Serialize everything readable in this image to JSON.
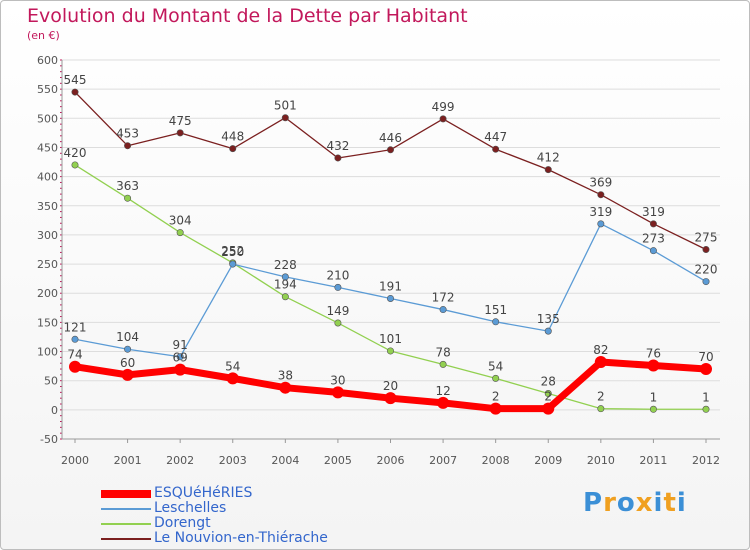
{
  "title": "Evolution du Montant de la Dette par Habitant",
  "subtitle": "(en €)",
  "brand": "Proxiti",
  "colors": {
    "title": "#c2185b",
    "axis_text": "#555555",
    "legend_text": "#3366cc",
    "grid": "#dddddd"
  },
  "chart_data": {
    "type": "line",
    "title": "Evolution du Montant de la Dette par Habitant",
    "subtitle": "(en €)",
    "x": [
      "2000",
      "2001",
      "2002",
      "2003",
      "2004",
      "2005",
      "2006",
      "2007",
      "2008",
      "2009",
      "2010",
      "2011",
      "2012"
    ],
    "ylim": [
      -50,
      600
    ],
    "yticks": [
      -50,
      0,
      50,
      100,
      150,
      200,
      250,
      300,
      350,
      400,
      450,
      500,
      550,
      600
    ],
    "grid": true,
    "legend_position": "bottom",
    "series": [
      {
        "name": "ESQUéHéRIES",
        "color": "#ff0000",
        "values": [
          74,
          60,
          69,
          54,
          38,
          30,
          20,
          12,
          2,
          2,
          82,
          76,
          70
        ]
      },
      {
        "name": "Leschelles",
        "color": "#5b9bd5",
        "values": [
          121,
          104,
          91,
          250,
          228,
          210,
          191,
          172,
          151,
          135,
          319,
          273,
          220
        ]
      },
      {
        "name": "Dorengt",
        "color": "#92d050",
        "values": [
          420,
          363,
          304,
          252,
          194,
          149,
          101,
          78,
          54,
          28,
          2,
          1,
          1
        ]
      },
      {
        "name": "Le Nouvion-en-Thiérache",
        "color": "#7b2020",
        "values": [
          545,
          453,
          475,
          448,
          501,
          432,
          446,
          499,
          447,
          412,
          369,
          319,
          275
        ]
      }
    ]
  }
}
